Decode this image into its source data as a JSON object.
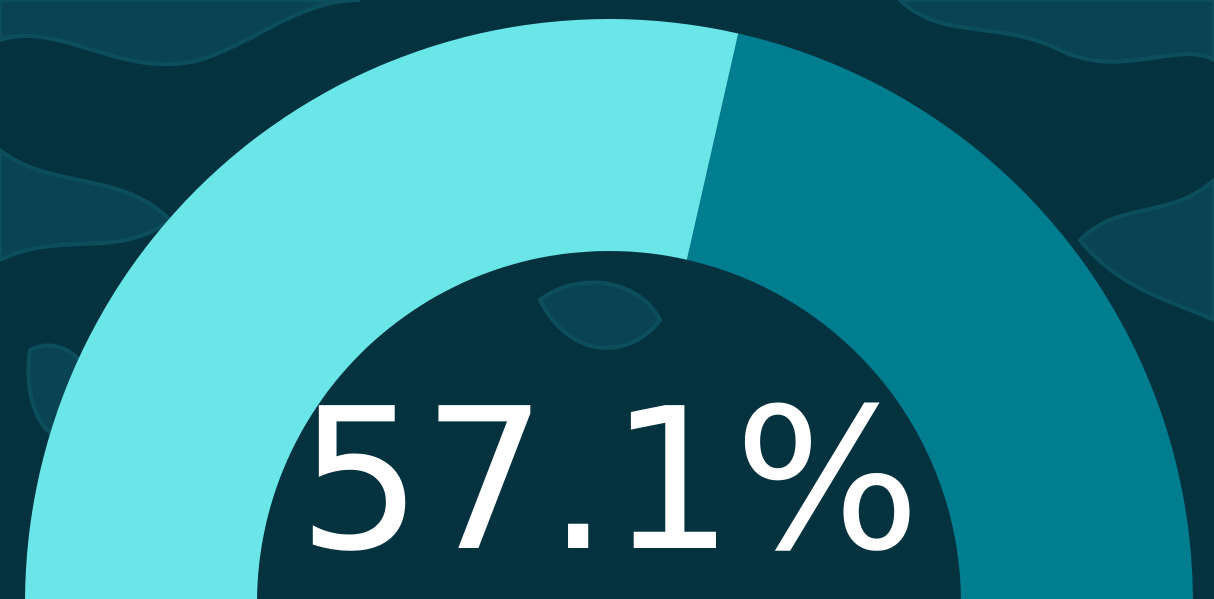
{
  "chart_data": {
    "type": "gauge",
    "values": [
      57.1
    ],
    "value_labels": [
      "57.1%"
    ],
    "ylim": [
      0,
      100
    ],
    "color": "#6ae6e8",
    "track_color": "#007d8f"
  }
}
